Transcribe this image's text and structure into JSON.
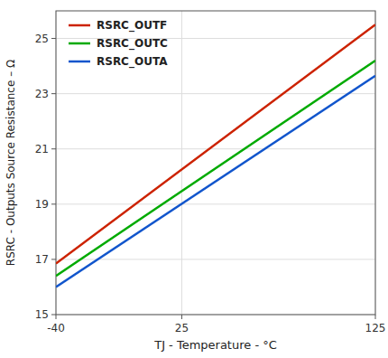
{
  "chart_data": {
    "type": "line",
    "x_label": "TJ - Temperature - °C",
    "y_label": "RSRC - Outputs Source Resistance – Ω",
    "x": [
      -40,
      125
    ],
    "series": [
      {
        "name": "RSRC_OUTF",
        "color": "#cc2200",
        "values": [
          16.85,
          25.5
        ]
      },
      {
        "name": "RSRC_OUTC",
        "color": "#00aa00",
        "values": [
          16.4,
          24.2
        ]
      },
      {
        "name": "RSRC_OUTA",
        "color": "#1155cc",
        "values": [
          16.0,
          23.65
        ]
      }
    ],
    "xlim": [
      -40,
      125
    ],
    "ylim": [
      15,
      26
    ],
    "xticks": [
      -40,
      25,
      125
    ],
    "yticks": [
      15,
      17,
      19,
      21,
      23,
      25
    ],
    "grid": true,
    "legend": "upper left"
  }
}
